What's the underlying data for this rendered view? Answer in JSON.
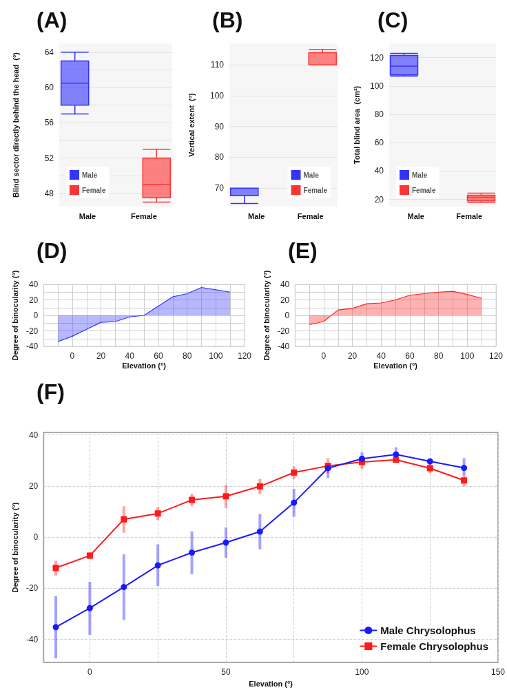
{
  "chart_data": [
    {
      "type": "box",
      "title": "(A)",
      "ylabel": "Blind sector directly behind the head  (°)",
      "categories": [
        "Male",
        "Female"
      ],
      "series": [
        {
          "name": "Male",
          "color": "#3333ff",
          "boxes": [
            {
              "low": 57,
              "q1": 58,
              "median": 60.5,
              "q3": 63,
              "high": 64
            },
            null
          ]
        },
        {
          "name": "Female",
          "color": "#ff3333",
          "boxes": [
            null,
            {
              "low": 47,
              "q1": 47.5,
              "median": 49,
              "q3": 52,
              "high": 53
            }
          ]
        }
      ],
      "ylim": [
        46.5,
        65
      ],
      "yticks": [
        48,
        {
          "value": 50,
          "label": null
        },
        52,
        {
          "value": 54,
          "label": null
        },
        56,
        {
          "value": 58,
          "label": null
        },
        60,
        {
          "value": 62,
          "label": null
        },
        64
      ],
      "grid": "y",
      "legend": "bottom left"
    },
    {
      "type": "box",
      "title": "(B)",
      "ylabel": "Vertical extent  (°)",
      "categories": [
        "Male",
        "Female"
      ],
      "series": [
        {
          "name": "Male",
          "color": "#3333ff",
          "boxes": [
            {
              "low": 65,
              "q1": 67.5,
              "median": 67.5,
              "q3": 70,
              "high": 70
            },
            null
          ]
        },
        {
          "name": "Female",
          "color": "#ff3333",
          "boxes": [
            null,
            {
              "low": 110,
              "q1": 110,
              "median": 110,
              "q3": 114,
              "high": 115
            }
          ]
        }
      ],
      "ylim": [
        64,
        117
      ],
      "yticks": [
        70,
        80,
        90,
        100,
        110
      ],
      "grid": "y",
      "legend": "bottom right"
    },
    {
      "type": "box",
      "title": "(C)",
      "ylabel": "Total blind area  (cm²)",
      "categories": [
        "Male",
        "Female"
      ],
      "series": [
        {
          "name": "Male",
          "color": "#3333ff",
          "boxes": [
            {
              "low": 107,
              "q1": 107.8,
              "median": 114,
              "q3": 121.5,
              "high": 123
            },
            null
          ]
        },
        {
          "name": "Female",
          "color": "#ff3333",
          "boxes": [
            null,
            {
              "low": 18,
              "q1": 19,
              "median": 21.5,
              "q3": 23,
              "high": 24.5
            }
          ]
        }
      ],
      "ylim": [
        15,
        130
      ],
      "yticks": [
        20,
        40,
        60,
        80,
        100,
        120
      ],
      "grid": "y",
      "legend": "bottom left"
    },
    {
      "type": "area",
      "title": "(D)",
      "xlabel": "Elevation (°)",
      "ylabel": "Degree of binocularity (°)",
      "x": [
        -10,
        0,
        10,
        20,
        30,
        40,
        50,
        60,
        70,
        80,
        90,
        100,
        110
      ],
      "series": [
        {
          "color": "#3333ff",
          "values": [
            -34,
            -27,
            -18,
            -9,
            -8,
            -2,
            0,
            12,
            24,
            28,
            36,
            33,
            30
          ]
        }
      ],
      "xlim": [
        -20,
        120
      ],
      "xticks": [
        {
          "value": -20,
          "label": null
        },
        {
          "value": -10,
          "label": null
        },
        0,
        {
          "value": 10,
          "label": null
        },
        20,
        {
          "value": 30,
          "label": null
        },
        40,
        {
          "value": 50,
          "label": null
        },
        60,
        {
          "value": 70,
          "label": null
        },
        80,
        {
          "value": 90,
          "label": null
        },
        100,
        {
          "value": 110,
          "label": null
        },
        120
      ],
      "ylim": [
        -40,
        40
      ],
      "yticks": [
        -40,
        {
          "value": -30,
          "label": null
        },
        -20,
        {
          "value": -10,
          "label": null
        },
        0,
        {
          "value": 10,
          "label": null
        },
        20,
        {
          "value": 30,
          "label": null
        },
        40
      ],
      "grid": true
    },
    {
      "type": "area",
      "title": "(E)",
      "xlabel": "Elevation (°)",
      "ylabel": "Degree of binocularity (°)",
      "x": [
        -10,
        0,
        10,
        20,
        30,
        40,
        50,
        60,
        70,
        80,
        90,
        100,
        110
      ],
      "series": [
        {
          "color": "#ff2222",
          "values": [
            -12,
            -8,
            7,
            9,
            15,
            16,
            20,
            26,
            28,
            30,
            31,
            27,
            22
          ]
        }
      ],
      "xlim": [
        -20,
        120
      ],
      "xticks": [
        {
          "value": -20,
          "label": null
        },
        {
          "value": -10,
          "label": null
        },
        0,
        {
          "value": 10,
          "label": null
        },
        20,
        {
          "value": 30,
          "label": null
        },
        40,
        {
          "value": 50,
          "label": null
        },
        60,
        {
          "value": 70,
          "label": null
        },
        80,
        {
          "value": 90,
          "label": null
        },
        100,
        {
          "value": 110,
          "label": null
        },
        120
      ],
      "ylim": [
        -40,
        40
      ],
      "yticks": [
        -40,
        {
          "value": -30,
          "label": null
        },
        -20,
        {
          "value": -10,
          "label": null
        },
        0,
        {
          "value": 10,
          "label": null
        },
        20,
        {
          "value": 30,
          "label": null
        },
        40
      ],
      "grid": true
    },
    {
      "type": "line",
      "title": "(F)",
      "xlabel": "Elevation (°)",
      "ylabel": "Degree of binocularity (°)",
      "x": [
        -12.5,
        0,
        12.5,
        25,
        37.5,
        50,
        62.5,
        75,
        87.5,
        100,
        112.5,
        125,
        137.5
      ],
      "series": [
        {
          "name": "Male Chrysolophus",
          "color": "#1a1aff",
          "marker": "circle",
          "values": [
            -35.2,
            -27.7,
            -19.5,
            -11,
            -6,
            -2.1,
            2.2,
            13.5,
            27,
            30.7,
            32.4,
            29.7,
            27.1
          ],
          "errors": [
            [
              -47.4,
              -23.1
            ],
            [
              -38.2,
              -17.5
            ],
            [
              -32.3,
              -6.7
            ],
            [
              -19.1,
              -2.8
            ],
            [
              -14.5,
              2.3
            ],
            [
              -8,
              3.8
            ],
            [
              -4.7,
              9.1
            ],
            [
              8,
              18.9
            ],
            [
              23.2,
              28.7
            ],
            [
              30.7,
              33.2
            ],
            [
              29.9,
              35.2
            ],
            [
              28.3,
              30.5
            ],
            [
              24.4,
              30.9
            ]
          ]
        },
        {
          "name": "Female Chrysolophus",
          "color": "#ff1a1a",
          "marker": "square",
          "values": [
            -12,
            -7.2,
            7,
            9.3,
            14.6,
            16,
            19.9,
            25.3,
            27.9,
            29.4,
            30.3,
            27,
            22.2
          ],
          "errors": [
            [
              -15,
              -9.2
            ],
            [
              -8.7,
              -6
            ],
            [
              1.7,
              12.1
            ],
            [
              6.7,
              11.8
            ],
            [
              12.1,
              17
            ],
            [
              11.4,
              20.5
            ],
            [
              16.9,
              22.8
            ],
            [
              22.8,
              27.7
            ],
            [
              25,
              30.9
            ],
            [
              26.6,
              31.5
            ],
            [
              29.3,
              31.4
            ],
            [
              25,
              28.7
            ],
            [
              19.9,
              24.7
            ]
          ]
        }
      ],
      "xlim": [
        -17,
        150
      ],
      "xticks": [
        0,
        {
          "value": 25,
          "label": null
        },
        50,
        {
          "value": 75,
          "label": null
        },
        100,
        {
          "value": 125,
          "label": null
        },
        150
      ],
      "ylim": [
        -49,
        41
      ],
      "yticks": [
        -40,
        -20,
        0,
        20,
        40
      ],
      "grid": true,
      "legend": "bottom right"
    }
  ]
}
